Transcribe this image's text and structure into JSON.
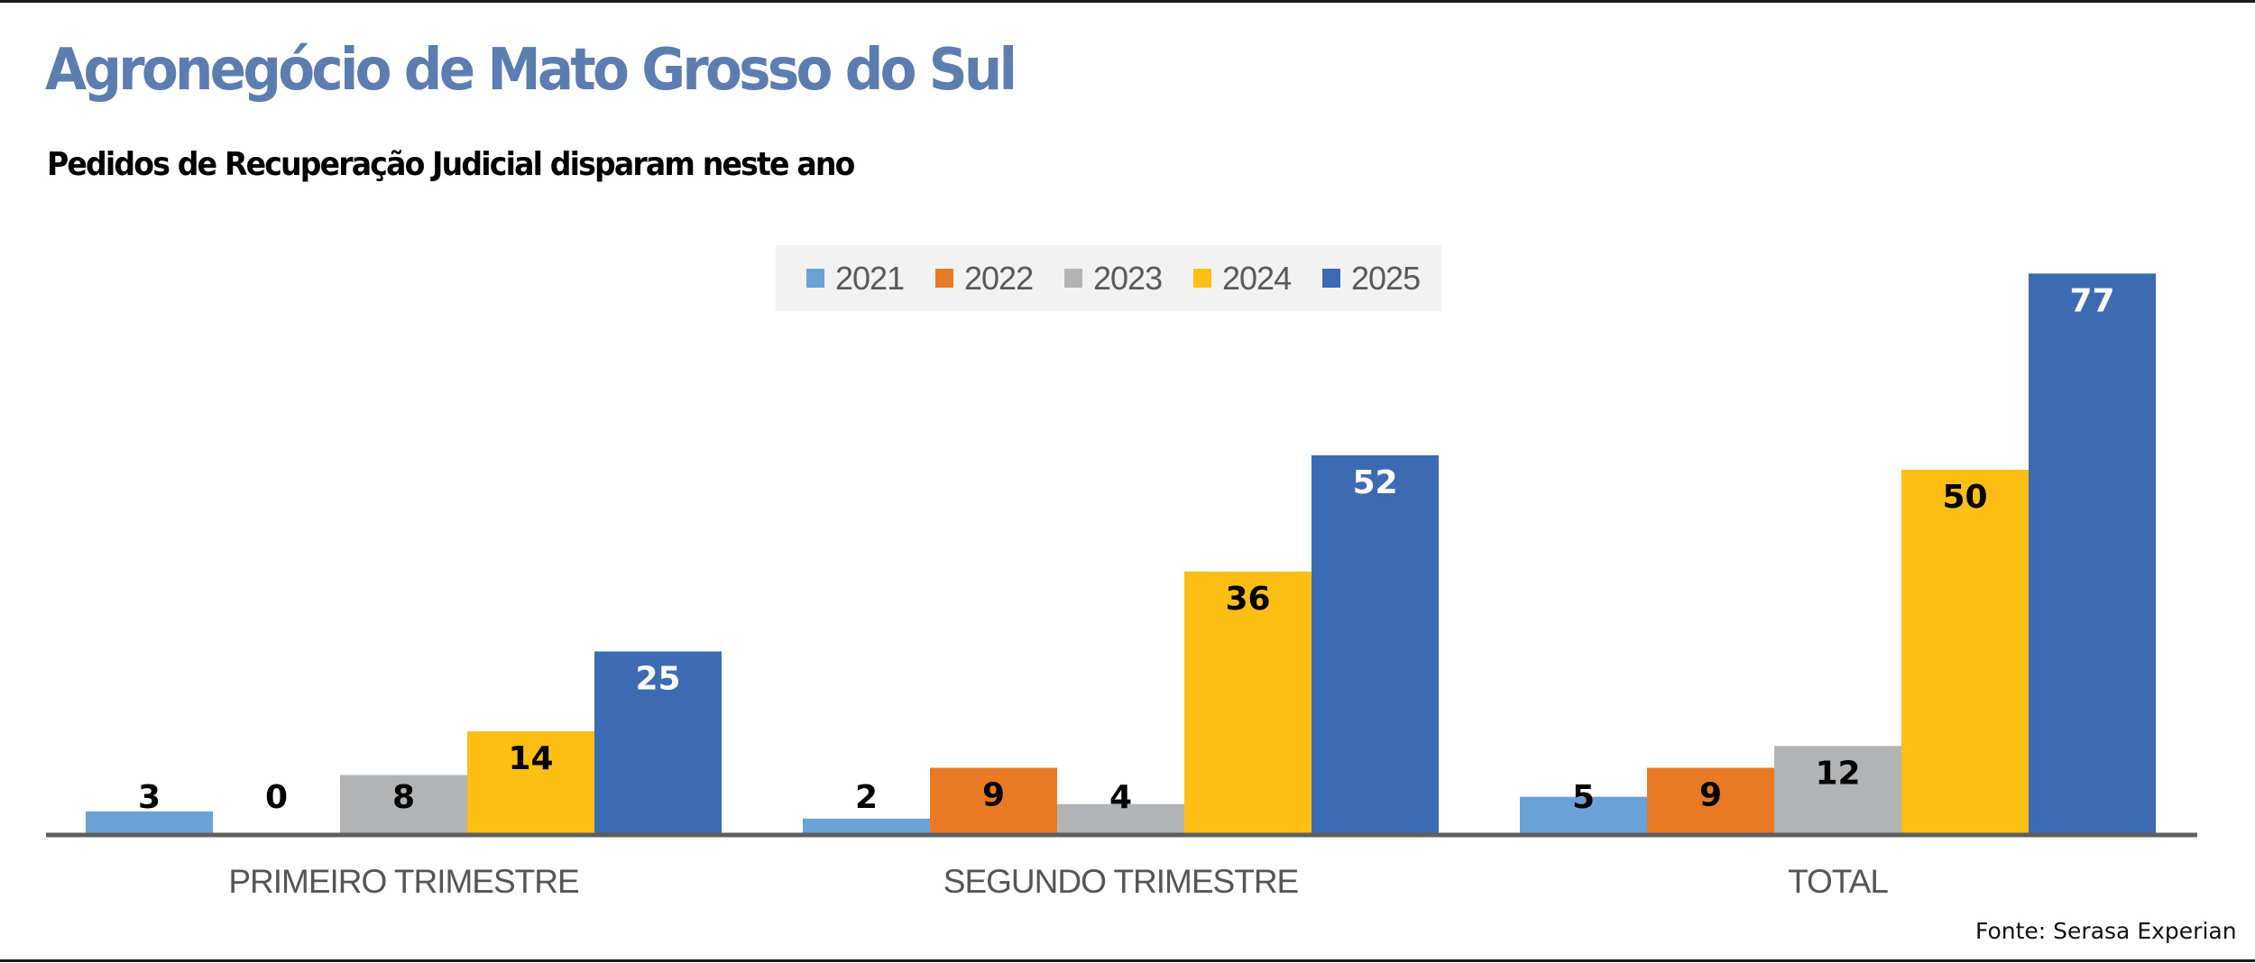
{
  "header": {
    "title": "Agronegócio de Mato Grosso do Sul",
    "subtitle": "Pedidos de Recuperação Judicial disparam neste ano"
  },
  "source": "Fonte: Serasa Experian",
  "colors": {
    "title": "#5b7db0",
    "2021": "#6aa1d6",
    "2022": "#e87a25",
    "2023": "#b2b3b5",
    "2024": "#fdbf14",
    "2025": "#3d6bb3"
  },
  "chart_data": {
    "type": "bar",
    "title": "Agronegócio de Mato Grosso do Sul",
    "subtitle": "Pedidos de Recuperação Judicial disparam neste ano",
    "xlabel": "",
    "ylabel": "",
    "ylim": [
      0,
      80
    ],
    "grid": false,
    "legend_position": "top-center",
    "categories": [
      "PRIMEIRO TRIMESTRE",
      "SEGUNDO TRIMESTRE",
      "TOTAL"
    ],
    "series": [
      {
        "name": "2021",
        "color": "#6aa1d6",
        "label_color": "#000000",
        "values": [
          3,
          2,
          5
        ]
      },
      {
        "name": "2022",
        "color": "#e87a25",
        "label_color": "#000000",
        "values": [
          0,
          9,
          9
        ]
      },
      {
        "name": "2023",
        "color": "#b2b3b5",
        "label_color": "#000000",
        "values": [
          8,
          4,
          12
        ]
      },
      {
        "name": "2024",
        "color": "#fdbf14",
        "label_color": "#000000",
        "values": [
          14,
          36,
          50
        ]
      },
      {
        "name": "2025",
        "color": "#3d6bb3",
        "label_color": "#ffffff",
        "values": [
          25,
          52,
          77
        ]
      }
    ]
  }
}
